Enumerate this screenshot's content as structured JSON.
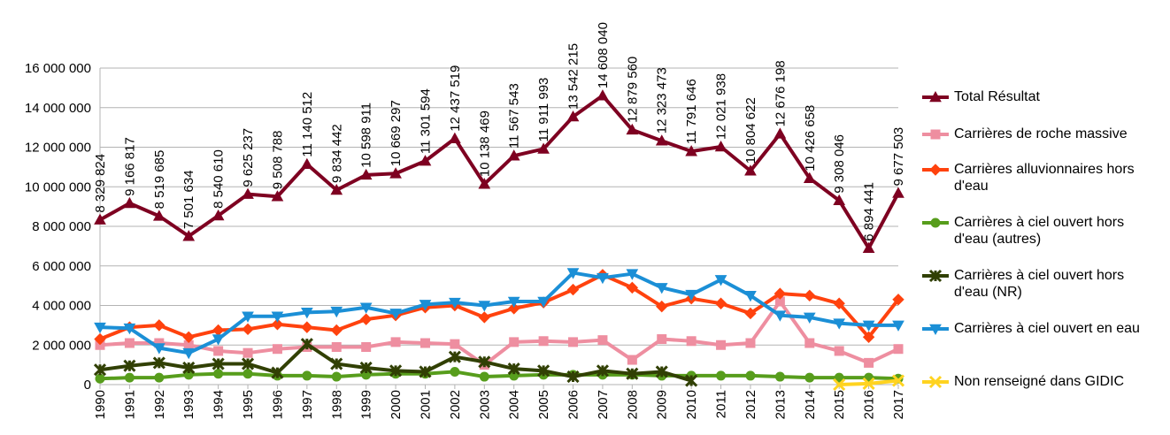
{
  "chart_data": {
    "type": "line",
    "categories": [
      "1990",
      "1991",
      "1992",
      "1993",
      "1994",
      "1995",
      "1996",
      "1997",
      "1998",
      "1999",
      "2000",
      "2001",
      "2002",
      "2003",
      "2004",
      "2005",
      "2006",
      "2007",
      "2008",
      "2009",
      "2010",
      "2011",
      "2012",
      "2013",
      "2014",
      "2015",
      "2016",
      "2017"
    ],
    "ylim": [
      0,
      16000000
    ],
    "yticks": [
      0,
      {
        "value": 2000000,
        "label": "2 000 000"
      },
      {
        "value": 4000000,
        "label": "4 000 000"
      },
      {
        "value": 6000000,
        "label": "6 000 000"
      },
      {
        "value": 8000000,
        "label": "8 000 000"
      },
      {
        "value": 10000000,
        "label": "10 000 000"
      },
      {
        "value": 12000000,
        "label": "12 000 000"
      },
      {
        "value": 14000000,
        "label": "14 000 000"
      },
      {
        "value": 16000000,
        "label": "16 000 000"
      }
    ],
    "grid": true,
    "legend": "right",
    "series": [
      {
        "name": "Total Résultat",
        "color": "#7e0021",
        "marker": "triangle-up",
        "values": [
          8329824,
          9166817,
          8519685,
          7501634,
          8540610,
          9625237,
          9508788,
          11140512,
          9834442,
          10598911,
          10669297,
          11301594,
          12437519,
          10138469,
          11567543,
          11911993,
          13542215,
          14608040,
          12879560,
          12323473,
          11791646,
          12021938,
          10804622,
          12676198,
          10426658,
          9308046,
          6894441,
          9677503
        ],
        "value_labels": [
          "8 329 824",
          "9 166 817",
          "8 519 685",
          "7 501 634",
          "8 540 610",
          "9 625 237",
          "9 508 788",
          "11 140 512",
          "9 834 442",
          "10 598 911",
          "10 669 297",
          "11 301 594",
          "12 437 519",
          "10 138 469",
          "11 567 543",
          "11 911 993",
          "13 542 215",
          "14 608 040",
          "12 879 560",
          "12 323 473",
          "11 791 646",
          "12 021 938",
          "10 804 622",
          "12 676 198",
          "10 426 658",
          "9 308 046",
          "6 894 441",
          "9 677 503"
        ]
      },
      {
        "name": "Carrières de roche massive",
        "color": "#ee8ea0",
        "marker": "square",
        "values": [
          2000000,
          2100000,
          2100000,
          2000000,
          1700000,
          1600000,
          1800000,
          1900000,
          1900000,
          1900000,
          2150000,
          2100000,
          2050000,
          1000000,
          2150000,
          2200000,
          2150000,
          2250000,
          1250000,
          2300000,
          2200000,
          2000000,
          2100000,
          4200000,
          2100000,
          1700000,
          1100000,
          1800000
        ]
      },
      {
        "name": "Carrières alluvionnaires hors d'eau",
        "color": "#ff420e",
        "marker": "diamond",
        "values": [
          2300000,
          2900000,
          3000000,
          2400000,
          2750000,
          2800000,
          3050000,
          2900000,
          2750000,
          3300000,
          3500000,
          3900000,
          4000000,
          3400000,
          3850000,
          4150000,
          4800000,
          5550000,
          4900000,
          3950000,
          4350000,
          4100000,
          3600000,
          4600000,
          4500000,
          4100000,
          2400000,
          4300000
        ]
      },
      {
        "name": "Carrières à ciel ouvert hors d'eau (autres)",
        "color": "#579d1c",
        "marker": "circle",
        "values": [
          300000,
          350000,
          350000,
          500000,
          550000,
          550000,
          450000,
          450000,
          400000,
          500000,
          550000,
          550000,
          650000,
          400000,
          450000,
          500000,
          500000,
          500000,
          500000,
          450000,
          450000,
          450000,
          450000,
          400000,
          350000,
          350000,
          350000,
          300000
        ]
      },
      {
        "name": "Carrières à ciel ouvert hors d'eau (NR)",
        "color": "#314004",
        "marker": "star",
        "values": [
          750000,
          950000,
          1100000,
          850000,
          1050000,
          1050000,
          600000,
          2050000,
          1050000,
          850000,
          700000,
          650000,
          1400000,
          1150000,
          800000,
          700000,
          400000,
          700000,
          550000,
          650000,
          200000,
          null,
          null,
          null,
          null,
          null,
          null,
          null
        ]
      },
      {
        "name": "Carrières à ciel ouvert en eau",
        "color": "#1b8fd6",
        "marker": "triangle-down",
        "values": [
          2900000,
          2850000,
          1850000,
          1600000,
          2300000,
          3450000,
          3450000,
          3650000,
          3700000,
          3900000,
          3600000,
          4050000,
          4150000,
          4000000,
          4200000,
          4200000,
          5650000,
          5400000,
          5600000,
          4900000,
          4550000,
          5300000,
          4500000,
          3500000,
          3400000,
          3100000,
          3000000,
          3000000
        ]
      },
      {
        "name": "Non renseigné dans GIDIC",
        "color": "#ffd320",
        "marker": "cross",
        "values": [
          null,
          null,
          null,
          null,
          null,
          null,
          null,
          null,
          null,
          null,
          null,
          null,
          null,
          null,
          null,
          null,
          null,
          null,
          null,
          null,
          null,
          null,
          null,
          null,
          null,
          0,
          50000,
          200000
        ]
      }
    ]
  }
}
